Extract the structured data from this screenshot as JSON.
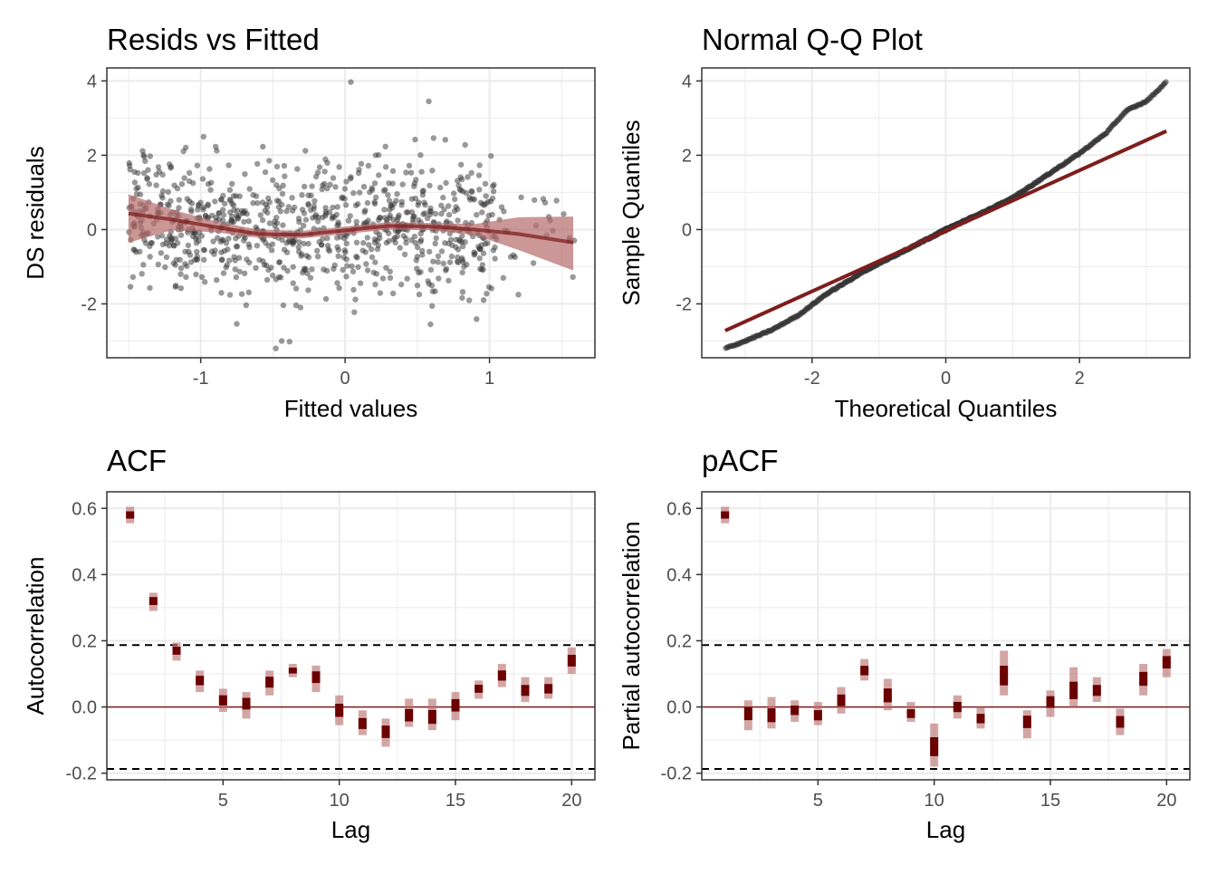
{
  "colors": {
    "accent": "#7f1d1d",
    "ci_fill": "#b56b6b",
    "points": "#333333",
    "grid": "#ebebeb"
  },
  "chart_data": [
    {
      "type": "scatter",
      "title": "Resids vs Fitted",
      "xlabel": "Fitted values",
      "ylabel": "DS residuals",
      "xlim": [
        -1.65,
        1.73
      ],
      "ylim": [
        -3.45,
        4.35
      ],
      "xticks": [
        "-1",
        "0",
        "1"
      ],
      "yticks": [
        "-2",
        "0",
        "2",
        "4"
      ],
      "grid": true,
      "n_points_approx": 900,
      "smooth": {
        "x": [
          -1.5,
          -1.2,
          -0.9,
          -0.6,
          -0.3,
          0,
          0.3,
          0.6,
          0.9,
          1.2,
          1.58
        ],
        "y": [
          0.43,
          0.27,
          0.07,
          -0.12,
          -0.14,
          -0.02,
          0.1,
          0.08,
          0.0,
          -0.12,
          -0.35
        ],
        "lower": [
          -0.35,
          -0.02,
          -0.07,
          -0.22,
          -0.24,
          -0.12,
          0.0,
          -0.02,
          -0.15,
          -0.55,
          -1.1
        ],
        "upper": [
          0.95,
          0.54,
          0.22,
          0.0,
          -0.04,
          0.08,
          0.2,
          0.18,
          0.15,
          0.33,
          0.35
        ]
      },
      "notable_points": [
        [
          0.04,
          3.97
        ],
        [
          -0.48,
          -3.2
        ],
        [
          -0.98,
          2.5
        ],
        [
          1.2,
          -1.75
        ],
        [
          0.58,
          3.45
        ]
      ]
    },
    {
      "type": "scatter",
      "title": "Normal Q-Q Plot",
      "xlabel": "Theoretical Quantiles",
      "ylabel": "Sample Quantiles",
      "xlim": [
        -3.65,
        3.65
      ],
      "ylim": [
        -3.45,
        4.35
      ],
      "xticks": [
        "-2",
        "0",
        "2"
      ],
      "yticks": [
        "-2",
        "0",
        "2",
        "4"
      ],
      "grid": true,
      "reference_line": {
        "x": [
          -3.3,
          3.3
        ],
        "y": [
          -2.72,
          2.65
        ]
      },
      "curve": {
        "x": [
          -3.3,
          -3.0,
          -2.6,
          -2.2,
          -1.8,
          -1.2,
          -0.6,
          0,
          0.6,
          1.0,
          1.5,
          2.0,
          2.4,
          2.7,
          3.0,
          3.3
        ],
        "y": [
          -3.2,
          -3.0,
          -2.7,
          -2.3,
          -1.75,
          -1.1,
          -0.55,
          0,
          0.5,
          0.85,
          1.45,
          2.05,
          2.6,
          3.2,
          3.45,
          3.97
        ]
      }
    },
    {
      "type": "bar",
      "title": "ACF",
      "xlabel": "Lag",
      "ylabel": "Autocorrelation",
      "xlim": [
        0,
        21
      ],
      "ylim": [
        -0.22,
        0.65
      ],
      "xticks": [
        "5",
        "10",
        "15",
        "20"
      ],
      "yticks": [
        "-0.2",
        "0.0",
        "0.2",
        "0.4",
        "0.6"
      ],
      "grid": true,
      "confidence_bound": 0.187,
      "lags": [
        1,
        2,
        3,
        4,
        5,
        6,
        7,
        8,
        9,
        10,
        11,
        12,
        13,
        14,
        15,
        16,
        17,
        18,
        19,
        20
      ],
      "values": [
        0.58,
        0.32,
        0.17,
        0.08,
        0.02,
        0.01,
        0.075,
        0.11,
        0.09,
        -0.01,
        -0.05,
        -0.075,
        -0.025,
        -0.03,
        0.005,
        0.055,
        0.095,
        0.05,
        0.055,
        0.14
      ],
      "intervals": [
        [
          0.555,
          0.605
        ],
        [
          0.29,
          0.345
        ],
        [
          0.14,
          0.195
        ],
        [
          0.045,
          0.11
        ],
        [
          -0.015,
          0.055
        ],
        [
          -0.035,
          0.045
        ],
        [
          0.035,
          0.11
        ],
        [
          0.09,
          0.13
        ],
        [
          0.045,
          0.125
        ],
        [
          -0.055,
          0.035
        ],
        [
          -0.085,
          -0.01
        ],
        [
          -0.12,
          -0.035
        ],
        [
          -0.06,
          0.025
        ],
        [
          -0.07,
          0.025
        ],
        [
          -0.04,
          0.045
        ],
        [
          0.025,
          0.08
        ],
        [
          0.06,
          0.13
        ],
        [
          0.015,
          0.09
        ],
        [
          0.025,
          0.09
        ],
        [
          0.1,
          0.18
        ]
      ]
    },
    {
      "type": "bar",
      "title": "pACF",
      "xlabel": "Lag",
      "ylabel": "Partial autocorrelation",
      "xlim": [
        0,
        21
      ],
      "ylim": [
        -0.22,
        0.65
      ],
      "xticks": [
        "5",
        "10",
        "15",
        "20"
      ],
      "yticks": [
        "-0.2",
        "0.0",
        "0.2",
        "0.4",
        "0.6"
      ],
      "grid": true,
      "confidence_bound": 0.187,
      "lags": [
        1,
        2,
        3,
        4,
        5,
        6,
        7,
        8,
        9,
        10,
        11,
        12,
        13,
        14,
        15,
        16,
        17,
        18,
        19,
        20
      ],
      "values": [
        0.58,
        -0.02,
        -0.025,
        -0.01,
        -0.025,
        0.02,
        0.11,
        0.035,
        -0.02,
        -0.12,
        0.0,
        -0.035,
        0.095,
        -0.045,
        0.015,
        0.05,
        0.05,
        -0.045,
        0.085,
        0.135
      ],
      "intervals": [
        [
          0.555,
          0.605
        ],
        [
          -0.07,
          0.02
        ],
        [
          -0.065,
          0.03
        ],
        [
          -0.045,
          0.02
        ],
        [
          -0.055,
          0.015
        ],
        [
          -0.02,
          0.06
        ],
        [
          0.08,
          0.145
        ],
        [
          -0.01,
          0.085
        ],
        [
          -0.045,
          0.015
        ],
        [
          -0.18,
          -0.05
        ],
        [
          -0.035,
          0.035
        ],
        [
          -0.065,
          0.0
        ],
        [
          0.035,
          0.17
        ],
        [
          -0.095,
          -0.01
        ],
        [
          -0.03,
          0.05
        ],
        [
          0.0,
          0.12
        ],
        [
          0.015,
          0.09
        ],
        [
          -0.085,
          -0.005
        ],
        [
          0.035,
          0.13
        ],
        [
          0.09,
          0.175
        ]
      ]
    }
  ]
}
